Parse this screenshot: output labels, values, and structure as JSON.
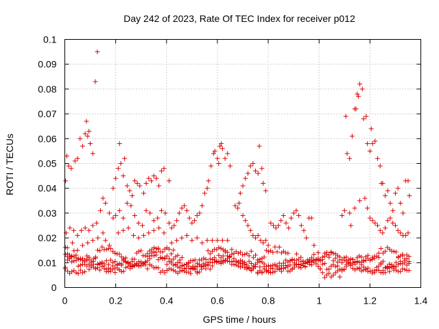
{
  "chart_data": {
    "type": "scatter",
    "title": "Day 242 of 2023, Rate Of TEC Index for receiver p012",
    "xlabel": "GPS time / hours",
    "ylabel": "ROTI / TECUs",
    "xlim": [
      0,
      1.4
    ],
    "ylim": [
      0,
      0.1
    ],
    "x_ticks": [
      "0",
      "0.2",
      "0.4",
      "0.6",
      "0.8",
      "1",
      "1.2",
      "1.4"
    ],
    "y_ticks": [
      "0",
      "0.01",
      "0.02",
      "0.03",
      "0.04",
      "0.05",
      "0.06",
      "0.07",
      "0.08",
      "0.09",
      "0.1"
    ],
    "grid": true,
    "marker_color": "#dd0000",
    "series": [
      {
        "marker": "+",
        "points": [
          [
            0.003,
            0.043
          ],
          [
            0.008,
            0.053
          ],
          [
            0.015,
            0.049
          ],
          [
            0.025,
            0.048
          ],
          [
            0.04,
            0.051
          ],
          [
            0.05,
            0.052
          ],
          [
            0.06,
            0.06
          ],
          [
            0.07,
            0.057
          ],
          [
            0.08,
            0.062
          ],
          [
            0.085,
            0.067
          ],
          [
            0.09,
            0.061
          ],
          [
            0.095,
            0.063
          ],
          [
            0.1,
            0.058
          ],
          [
            0.11,
            0.054
          ],
          [
            0.12,
            0.083
          ],
          [
            0.128,
            0.095
          ],
          [
            0.005,
            0.022
          ],
          [
            0.02,
            0.024
          ],
          [
            0.035,
            0.023
          ],
          [
            0.05,
            0.021
          ],
          [
            0.065,
            0.023
          ],
          [
            0.08,
            0.024
          ],
          [
            0.095,
            0.023
          ],
          [
            0.11,
            0.025
          ],
          [
            0.125,
            0.026
          ],
          [
            0.14,
            0.031
          ],
          [
            0.15,
            0.036
          ],
          [
            0.16,
            0.034
          ],
          [
            0.175,
            0.03
          ],
          [
            0.19,
            0.028
          ],
          [
            0.01,
            0.016
          ],
          [
            0.03,
            0.018
          ],
          [
            0.05,
            0.015
          ],
          [
            0.07,
            0.017
          ],
          [
            0.09,
            0.018
          ],
          [
            0.11,
            0.019
          ],
          [
            0.13,
            0.02
          ],
          [
            0.15,
            0.022
          ],
          [
            0.16,
            0.019
          ],
          [
            0.175,
            0.017
          ],
          [
            0.19,
            0.04
          ],
          [
            0.2,
            0.044
          ],
          [
            0.21,
            0.048
          ],
          [
            0.215,
            0.058
          ],
          [
            0.22,
            0.05
          ],
          [
            0.23,
            0.045
          ],
          [
            0.235,
            0.052
          ],
          [
            0.245,
            0.041
          ],
          [
            0.255,
            0.039
          ],
          [
            0.265,
            0.037
          ],
          [
            0.275,
            0.043
          ],
          [
            0.285,
            0.042
          ],
          [
            0.295,
            0.041
          ],
          [
            0.31,
            0.038
          ],
          [
            0.32,
            0.042
          ],
          [
            0.33,
            0.044
          ],
          [
            0.34,
            0.043
          ],
          [
            0.35,
            0.045
          ],
          [
            0.36,
            0.044
          ],
          [
            0.37,
            0.041
          ],
          [
            0.38,
            0.047
          ],
          [
            0.39,
            0.048
          ],
          [
            0.41,
            0.043
          ],
          [
            0.2,
            0.029
          ],
          [
            0.215,
            0.031
          ],
          [
            0.23,
            0.028
          ],
          [
            0.245,
            0.034
          ],
          [
            0.26,
            0.033
          ],
          [
            0.275,
            0.029
          ],
          [
            0.29,
            0.026
          ],
          [
            0.305,
            0.025
          ],
          [
            0.32,
            0.031
          ],
          [
            0.335,
            0.03
          ],
          [
            0.35,
            0.027
          ],
          [
            0.365,
            0.028
          ],
          [
            0.38,
            0.031
          ],
          [
            0.395,
            0.03
          ],
          [
            0.21,
            0.022
          ],
          [
            0.23,
            0.023
          ],
          [
            0.25,
            0.024
          ],
          [
            0.27,
            0.021
          ],
          [
            0.29,
            0.02
          ],
          [
            0.31,
            0.021
          ],
          [
            0.33,
            0.022
          ],
          [
            0.35,
            0.023
          ],
          [
            0.37,
            0.024
          ],
          [
            0.39,
            0.022
          ],
          [
            0.41,
            0.026
          ],
          [
            0.42,
            0.024
          ],
          [
            0.43,
            0.025
          ],
          [
            0.44,
            0.027
          ],
          [
            0.45,
            0.03
          ],
          [
            0.46,
            0.032
          ],
          [
            0.47,
            0.033
          ],
          [
            0.48,
            0.031
          ],
          [
            0.49,
            0.028
          ],
          [
            0.5,
            0.026
          ],
          [
            0.51,
            0.027
          ],
          [
            0.52,
            0.029
          ],
          [
            0.53,
            0.03
          ],
          [
            0.54,
            0.033
          ],
          [
            0.55,
            0.038
          ],
          [
            0.56,
            0.04
          ],
          [
            0.565,
            0.043
          ],
          [
            0.575,
            0.049
          ],
          [
            0.585,
            0.054
          ],
          [
            0.59,
            0.055
          ],
          [
            0.6,
            0.052
          ],
          [
            0.605,
            0.05
          ],
          [
            0.61,
            0.057
          ],
          [
            0.615,
            0.058
          ],
          [
            0.62,
            0.056
          ],
          [
            0.63,
            0.052
          ],
          [
            0.64,
            0.054
          ],
          [
            0.65,
            0.049
          ],
          [
            0.42,
            0.018
          ],
          [
            0.44,
            0.019
          ],
          [
            0.46,
            0.02
          ],
          [
            0.48,
            0.021
          ],
          [
            0.5,
            0.019
          ],
          [
            0.52,
            0.02
          ],
          [
            0.54,
            0.018
          ],
          [
            0.56,
            0.019
          ],
          [
            0.58,
            0.019
          ],
          [
            0.6,
            0.019
          ],
          [
            0.62,
            0.019
          ],
          [
            0.64,
            0.019
          ],
          [
            0.67,
            0.033
          ],
          [
            0.68,
            0.032
          ],
          [
            0.685,
            0.034
          ],
          [
            0.69,
            0.038
          ],
          [
            0.7,
            0.041
          ],
          [
            0.71,
            0.044
          ],
          [
            0.72,
            0.046
          ],
          [
            0.73,
            0.049
          ],
          [
            0.74,
            0.05
          ],
          [
            0.75,
            0.047
          ],
          [
            0.76,
            0.046
          ],
          [
            0.765,
            0.057
          ],
          [
            0.775,
            0.048
          ],
          [
            0.78,
            0.042
          ],
          [
            0.79,
            0.039
          ],
          [
            0.7,
            0.029
          ],
          [
            0.71,
            0.027
          ],
          [
            0.72,
            0.025
          ],
          [
            0.73,
            0.023
          ],
          [
            0.74,
            0.021
          ],
          [
            0.75,
            0.02
          ],
          [
            0.76,
            0.021
          ],
          [
            0.77,
            0.019
          ],
          [
            0.78,
            0.018
          ],
          [
            0.79,
            0.019
          ],
          [
            0.8,
            0.017
          ],
          [
            0.81,
            0.026
          ],
          [
            0.82,
            0.025
          ],
          [
            0.83,
            0.024
          ],
          [
            0.84,
            0.025
          ],
          [
            0.85,
            0.027
          ],
          [
            0.86,
            0.029
          ],
          [
            0.87,
            0.026
          ],
          [
            0.88,
            0.024
          ],
          [
            0.89,
            0.028
          ],
          [
            0.9,
            0.03
          ],
          [
            0.91,
            0.031
          ],
          [
            0.92,
            0.029
          ],
          [
            0.93,
            0.025
          ],
          [
            0.94,
            0.023
          ],
          [
            0.95,
            0.02
          ],
          [
            0.96,
            0.028
          ],
          [
            0.97,
            0.028
          ],
          [
            0.98,
            0.017
          ],
          [
            1.09,
            0.029
          ],
          [
            1.1,
            0.031
          ],
          [
            1.105,
            0.069
          ],
          [
            1.11,
            0.054
          ],
          [
            1.12,
            0.052
          ],
          [
            1.125,
            0.025
          ],
          [
            1.13,
            0.061
          ],
          [
            1.14,
            0.072
          ],
          [
            1.145,
            0.072
          ],
          [
            1.15,
            0.078
          ],
          [
            1.155,
            0.077
          ],
          [
            1.16,
            0.082
          ],
          [
            1.17,
            0.08
          ],
          [
            1.175,
            0.068
          ],
          [
            1.185,
            0.069
          ],
          [
            1.19,
            0.058
          ],
          [
            1.2,
            0.055
          ],
          [
            1.205,
            0.064
          ],
          [
            1.21,
            0.058
          ],
          [
            1.22,
            0.059
          ],
          [
            1.23,
            0.052
          ],
          [
            1.24,
            0.049
          ],
          [
            1.245,
            0.042
          ],
          [
            1.25,
            0.042
          ],
          [
            1.26,
            0.037
          ],
          [
            1.27,
            0.039
          ],
          [
            1.28,
            0.034
          ],
          [
            1.29,
            0.031
          ],
          [
            1.3,
            0.038
          ],
          [
            1.31,
            0.04
          ],
          [
            1.32,
            0.034
          ],
          [
            1.33,
            0.03
          ],
          [
            1.34,
            0.043
          ],
          [
            1.35,
            0.043
          ],
          [
            1.355,
            0.037
          ],
          [
            1.12,
            0.03
          ],
          [
            1.14,
            0.032
          ],
          [
            1.16,
            0.035
          ],
          [
            1.18,
            0.036
          ],
          [
            1.19,
            0.032
          ],
          [
            1.2,
            0.028
          ],
          [
            1.21,
            0.027
          ],
          [
            1.22,
            0.026
          ],
          [
            1.23,
            0.025
          ],
          [
            1.24,
            0.023
          ],
          [
            1.25,
            0.022
          ],
          [
            1.26,
            0.024
          ],
          [
            1.27,
            0.027
          ],
          [
            1.28,
            0.028
          ],
          [
            1.29,
            0.026
          ],
          [
            1.3,
            0.025
          ],
          [
            1.31,
            0.023
          ],
          [
            1.32,
            0.022
          ],
          [
            1.33,
            0.021
          ],
          [
            1.34,
            0.021
          ],
          [
            1.35,
            0.022
          ]
        ]
      }
    ]
  }
}
